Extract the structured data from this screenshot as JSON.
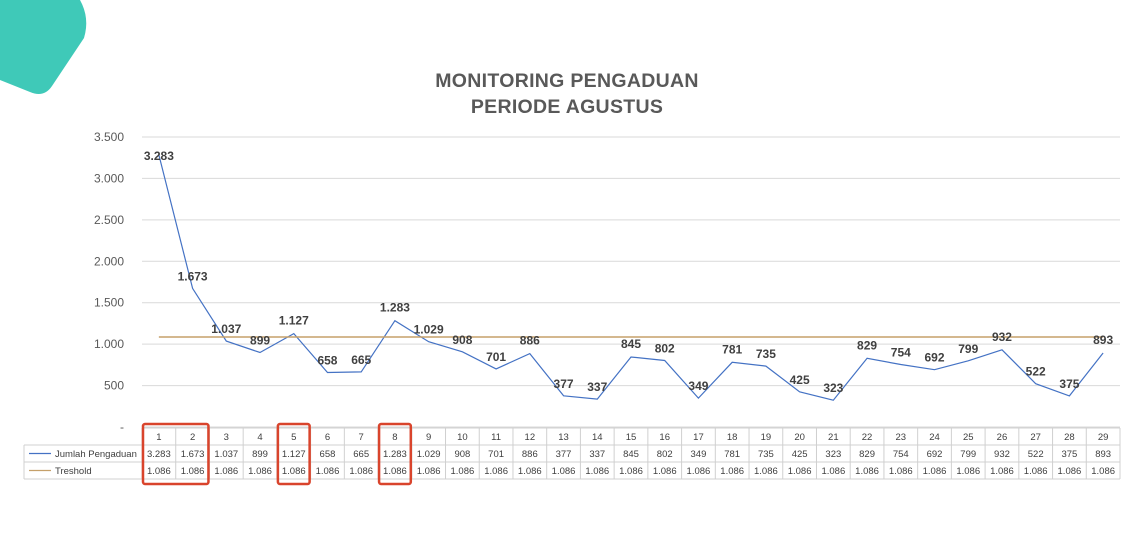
{
  "chart_data": {
    "type": "line",
    "title": "MONITORING PENGADUAN",
    "subtitle": "PERIODE AGUSTUS",
    "categories": [
      "1",
      "2",
      "3",
      "4",
      "5",
      "6",
      "7",
      "8",
      "9",
      "10",
      "11",
      "12",
      "13",
      "14",
      "15",
      "16",
      "17",
      "18",
      "19",
      "20",
      "21",
      "22",
      "23",
      "24",
      "25",
      "26",
      "27",
      "28",
      "29"
    ],
    "series": [
      {
        "name": "Jumlah Pengaduan",
        "color": "#4472C4",
        "values": [
          3283,
          1673,
          1037,
          899,
          1127,
          658,
          665,
          1283,
          1029,
          908,
          701,
          886,
          377,
          337,
          845,
          802,
          349,
          781,
          735,
          425,
          323,
          829,
          754,
          692,
          799,
          932,
          522,
          375,
          893
        ],
        "labels": [
          "3.283",
          "1.673",
          "1.037",
          "899",
          "1.127",
          "658",
          "665",
          "1.283",
          "1.029",
          "908",
          "701",
          "886",
          "377",
          "337",
          "845",
          "802",
          "349",
          "781",
          "735",
          "425",
          "323",
          "829",
          "754",
          "692",
          "799",
          "932",
          "522",
          "375",
          "893"
        ]
      },
      {
        "name": "Treshold",
        "color": "#C5A06A",
        "values": [
          1086,
          1086,
          1086,
          1086,
          1086,
          1086,
          1086,
          1086,
          1086,
          1086,
          1086,
          1086,
          1086,
          1086,
          1086,
          1086,
          1086,
          1086,
          1086,
          1086,
          1086,
          1086,
          1086,
          1086,
          1086,
          1086,
          1086,
          1086,
          1086
        ],
        "labels": [
          "1.086",
          "1.086",
          "1.086",
          "1.086",
          "1.086",
          "1.086",
          "1.086",
          "1.086",
          "1.086",
          "1.086",
          "1.086",
          "1.086",
          "1.086",
          "1.086",
          "1.086",
          "1.086",
          "1.086",
          "1.086",
          "1.086",
          "1.086",
          "1.086",
          "1.086",
          "1.086",
          "1.086",
          "1.086",
          "1.086",
          "1.086",
          "1.086",
          "1.086"
        ]
      }
    ],
    "y_ticks": [
      0,
      500,
      1000,
      1500,
      2000,
      2500,
      3000,
      3500
    ],
    "y_tick_labels": [
      "-",
      "500",
      "1.000",
      "1.500",
      "2.000",
      "2.500",
      "3.000",
      "3.500"
    ],
    "ylim": [
      0,
      3500
    ],
    "grid": true,
    "legend": "data-table",
    "highlighted_categories": [
      [
        "1",
        "2"
      ],
      [
        "5"
      ],
      [
        "8"
      ]
    ],
    "highlight_color": "#D9442C"
  },
  "decor": {
    "accent_color": "#3FC9B8"
  }
}
